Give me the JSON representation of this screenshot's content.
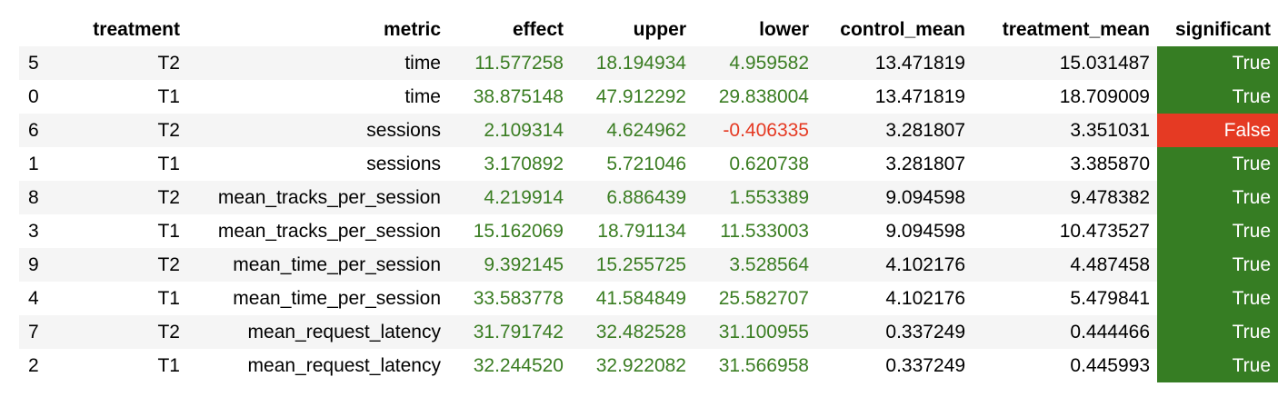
{
  "columns": [
    "",
    "treatment",
    "metric",
    "effect",
    "upper",
    "lower",
    "control_mean",
    "treatment_mean",
    "significant"
  ],
  "colors": {
    "positive_text": "#3a7d22",
    "negative_text": "#e53a23",
    "significant_true_bg": "#367d23",
    "significant_false_bg": "#e53a23"
  },
  "rows": [
    {
      "index": "5",
      "treatment": "T2",
      "metric": "time",
      "effect": "11.577258",
      "upper": "18.194934",
      "lower": "4.959582",
      "control_mean": "13.471819",
      "treatment_mean": "15.031487",
      "significant": "True"
    },
    {
      "index": "0",
      "treatment": "T1",
      "metric": "time",
      "effect": "38.875148",
      "upper": "47.912292",
      "lower": "29.838004",
      "control_mean": "13.471819",
      "treatment_mean": "18.709009",
      "significant": "True"
    },
    {
      "index": "6",
      "treatment": "T2",
      "metric": "sessions",
      "effect": "2.109314",
      "upper": "4.624962",
      "lower": "-0.406335",
      "control_mean": "3.281807",
      "treatment_mean": "3.351031",
      "significant": "False"
    },
    {
      "index": "1",
      "treatment": "T1",
      "metric": "sessions",
      "effect": "3.170892",
      "upper": "5.721046",
      "lower": "0.620738",
      "control_mean": "3.281807",
      "treatment_mean": "3.385870",
      "significant": "True"
    },
    {
      "index": "8",
      "treatment": "T2",
      "metric": "mean_tracks_per_session",
      "effect": "4.219914",
      "upper": "6.886439",
      "lower": "1.553389",
      "control_mean": "9.094598",
      "treatment_mean": "9.478382",
      "significant": "True"
    },
    {
      "index": "3",
      "treatment": "T1",
      "metric": "mean_tracks_per_session",
      "effect": "15.162069",
      "upper": "18.791134",
      "lower": "11.533003",
      "control_mean": "9.094598",
      "treatment_mean": "10.473527",
      "significant": "True"
    },
    {
      "index": "9",
      "treatment": "T2",
      "metric": "mean_time_per_session",
      "effect": "9.392145",
      "upper": "15.255725",
      "lower": "3.528564",
      "control_mean": "4.102176",
      "treatment_mean": "4.487458",
      "significant": "True"
    },
    {
      "index": "4",
      "treatment": "T1",
      "metric": "mean_time_per_session",
      "effect": "33.583778",
      "upper": "41.584849",
      "lower": "25.582707",
      "control_mean": "4.102176",
      "treatment_mean": "5.479841",
      "significant": "True"
    },
    {
      "index": "7",
      "treatment": "T2",
      "metric": "mean_request_latency",
      "effect": "31.791742",
      "upper": "32.482528",
      "lower": "31.100955",
      "control_mean": "0.337249",
      "treatment_mean": "0.444466",
      "significant": "True"
    },
    {
      "index": "2",
      "treatment": "T1",
      "metric": "mean_request_latency",
      "effect": "32.244520",
      "upper": "32.922082",
      "lower": "31.566958",
      "control_mean": "0.337249",
      "treatment_mean": "0.445993",
      "significant": "True"
    }
  ]
}
